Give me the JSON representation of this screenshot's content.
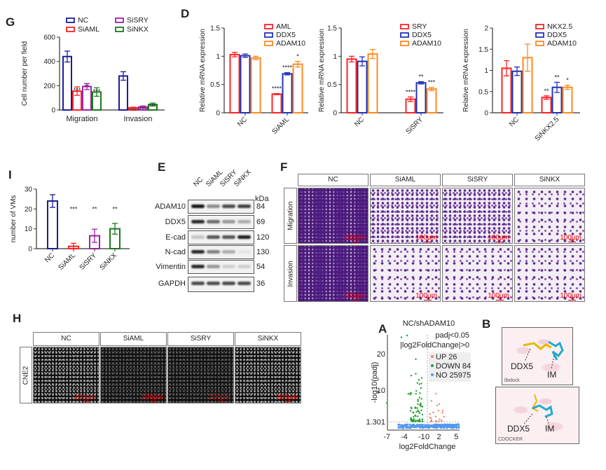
{
  "panel_labels": {
    "G": "G",
    "D": "D",
    "I": "I",
    "E": "E",
    "F": "F",
    "H": "H",
    "A": "A",
    "B": "B"
  },
  "colors": {
    "NC": "#1c1c9c",
    "SiAML": "#ff2222",
    "SiSRY": "#a020a8",
    "SiNKX": "#1b7a1b",
    "blue": "#2233bb",
    "orange": "#ff8a1f",
    "up": "#f08070",
    "down": "#22a030",
    "no": "#5599ee"
  },
  "chart_data": [
    {
      "id": "G",
      "type": "bar",
      "ylabel": "Cell number per field",
      "ylim": [
        0,
        600
      ],
      "yticks": [
        0,
        200,
        400,
        600
      ],
      "categories": [
        "Migration",
        "Invasion"
      ],
      "series": [
        {
          "name": "NC",
          "color": "#1c1c9c",
          "values": [
            440,
            280
          ],
          "errors": [
            45,
            35
          ]
        },
        {
          "name": "SiAML",
          "color": "#ff2222",
          "values": [
            155,
            18
          ],
          "errors": [
            35,
            5
          ]
        },
        {
          "name": "SiSRY",
          "color": "#a020a8",
          "values": [
            193,
            25
          ],
          "errors": [
            25,
            8
          ]
        },
        {
          "name": "SiNKX",
          "color": "#1b7a1b",
          "values": [
            148,
            45
          ],
          "errors": [
            35,
            12
          ]
        }
      ],
      "significance": [
        [
          "",
          "***",
          "**",
          "***"
        ],
        [
          "",
          "***",
          "***",
          "***"
        ]
      ]
    },
    {
      "id": "D1",
      "type": "bar",
      "ylabel": "Relative mRNA expression",
      "ylim": [
        0,
        1.5
      ],
      "yticks": [
        0,
        0.5,
        1,
        1.5
      ],
      "ytick_labels": [
        "0",
        "0.5",
        "1",
        "1.5"
      ],
      "categories": [
        "NC",
        "SiAML"
      ],
      "series": [
        {
          "name": "AML",
          "color": "#ff2222",
          "values": [
            1.03,
            0.33
          ],
          "errors": [
            0.04,
            0.01
          ]
        },
        {
          "name": "DDX5",
          "color": "#2233bb",
          "values": [
            1.01,
            0.69
          ],
          "errors": [
            0.03,
            0.02
          ]
        },
        {
          "name": "ADAM10",
          "color": "#ff8a1f",
          "values": [
            0.97,
            0.86
          ],
          "errors": [
            0.03,
            0.05
          ]
        }
      ],
      "significance": [
        [
          "",
          "",
          ""
        ],
        [
          "****",
          "****",
          "*"
        ]
      ]
    },
    {
      "id": "D2",
      "type": "bar",
      "ylabel": "Relative mRNA expression",
      "ylim": [
        0,
        1.5
      ],
      "yticks": [
        0,
        0.5,
        1,
        1.5
      ],
      "ytick_labels": [
        "0",
        "0.5",
        "1",
        "1.5"
      ],
      "categories": [
        "NC",
        "SiSRY"
      ],
      "series": [
        {
          "name": "SRY",
          "color": "#ff2222",
          "values": [
            0.95,
            0.24
          ],
          "errors": [
            0.05,
            0.04
          ]
        },
        {
          "name": "DDX5",
          "color": "#2233bb",
          "values": [
            0.91,
            0.53
          ],
          "errors": [
            0.08,
            0.02
          ]
        },
        {
          "name": "ADAM10",
          "color": "#ff8a1f",
          "values": [
            1.04,
            0.42
          ],
          "errors": [
            0.08,
            0.03
          ]
        }
      ],
      "significance": [
        [
          "",
          "",
          ""
        ],
        [
          "****",
          "**",
          "***"
        ]
      ]
    },
    {
      "id": "D3",
      "type": "bar",
      "ylabel": "Relative mRNA expression",
      "ylim": [
        0,
        2
      ],
      "yticks": [
        0,
        0.5,
        1,
        1.5,
        2
      ],
      "ytick_labels": [
        "0",
        "0.5",
        "1",
        "1.5",
        "2"
      ],
      "categories": [
        "NC",
        "SiNKX2.5"
      ],
      "series": [
        {
          "name": "NKX2.5",
          "color": "#ff2222",
          "values": [
            1.05,
            0.36
          ],
          "errors": [
            0.18,
            0.04
          ]
        },
        {
          "name": "DDX5",
          "color": "#2233bb",
          "values": [
            0.98,
            0.6
          ],
          "errors": [
            0.1,
            0.12
          ]
        },
        {
          "name": "ADAM10",
          "color": "#ff8a1f",
          "values": [
            1.3,
            0.6
          ],
          "errors": [
            0.32,
            0.05
          ]
        }
      ],
      "significance": [
        [
          "",
          "",
          ""
        ],
        [
          "**",
          "**",
          "*"
        ]
      ]
    },
    {
      "id": "I",
      "type": "bar",
      "ylabel": "number of VMs",
      "ylim": [
        0,
        30
      ],
      "yticks": [
        0,
        10,
        20,
        30
      ],
      "categories": [
        "NC",
        "SiAML",
        "SiSRY",
        "SiNKX"
      ],
      "colors": [
        "#1c1c9c",
        "#ff2222",
        "#a020a8",
        "#1b7a1b"
      ],
      "values": [
        24,
        1.2,
        6.5,
        10
      ],
      "errors": [
        3.2,
        1.5,
        3.3,
        2.7
      ],
      "significance": [
        "",
        "***",
        "**",
        "**"
      ]
    },
    {
      "id": "A",
      "type": "scatter",
      "title": "NC/shADAM10",
      "xlabel": "log2FoldChange",
      "ylabel": "-log10(padj)",
      "xticks": [
        -7,
        -4,
        -1,
        0,
        2,
        5
      ],
      "yticks": [
        1.301,
        10,
        20
      ],
      "xlim": [
        -7.2,
        5.5
      ],
      "ylim": [
        0,
        25
      ],
      "annotations": [
        "padj<0.05",
        "|log2FoldChange|>0"
      ],
      "legend": [
        {
          "label": "UP 26",
          "color": "#f08070"
        },
        {
          "label": "DOWN 84",
          "color": "#22a030"
        },
        {
          "label": "NO 25975",
          "color": "#5599ee"
        }
      ]
    }
  ],
  "western_blot": {
    "lanes": [
      "NC",
      "SiAML",
      "SiSRY",
      "SiNKX"
    ],
    "unit": "kDa",
    "rows": [
      {
        "protein": "ADAM10",
        "kda": "84",
        "intensity": [
          1,
          0.45,
          0.75,
          0.8
        ]
      },
      {
        "protein": "DDX5",
        "kda": "69",
        "intensity": [
          0.9,
          0.6,
          0.4,
          0.3
        ]
      },
      {
        "protein": "E-cad",
        "kda": "120",
        "intensity": [
          0.2,
          0.7,
          0.7,
          0.95
        ]
      },
      {
        "protein": "N-cad",
        "kda": "130",
        "intensity": [
          0.9,
          0.5,
          0.3,
          0.05
        ]
      },
      {
        "protein": "Vimentin",
        "kda": "54",
        "intensity": [
          0.9,
          0.4,
          0.15,
          0.15
        ]
      },
      {
        "protein": "GAPDH",
        "kda": "36",
        "intensity": [
          0.75,
          0.75,
          0.75,
          0.75
        ]
      }
    ]
  },
  "transwell": {
    "columns": [
      "NC",
      "SiAML",
      "SiSRY",
      "SiNKX"
    ],
    "rows": [
      "Migration",
      "Invasion"
    ],
    "scale": "100μm"
  },
  "vm_images": {
    "columns": [
      "NC",
      "SiAML",
      "SiSRY",
      "SiNKX"
    ],
    "row": "CNE2",
    "scale": "100μm"
  },
  "docking": {
    "panels": [
      {
        "method": "libdock",
        "protein": "DDX5",
        "ligand": "IM"
      },
      {
        "method": "CDOCKER",
        "protein": "DDX5",
        "ligand": "IM"
      }
    ]
  }
}
